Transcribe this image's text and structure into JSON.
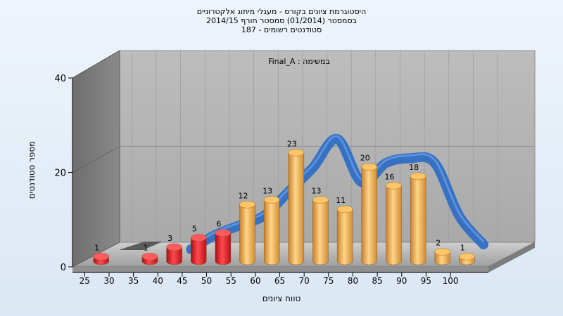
{
  "chart_data": {
    "type": "bar",
    "title_lines": [
      "היסטוגרמת ציונים בקורס - מעגלי מיתוג אלקטרוניים",
      "בסמסטר  (01/2014)  סמסטר חורף 2014/15",
      "סטודנטים רשומים - 187"
    ],
    "annotation": "במשימה : Final_A",
    "xlabel": "טווח ציונים",
    "ylabel": "מספר סטודנטים",
    "x_ticks": [
      "25",
      "30",
      "35",
      "40",
      "45",
      "50",
      "55",
      "60",
      "65",
      "70",
      "75",
      "80",
      "85",
      "90",
      "95",
      "100"
    ],
    "y_ticks": [
      "0",
      "20",
      "40"
    ],
    "ylim": [
      0,
      40
    ],
    "grid": true,
    "bar_positions": [
      27.5,
      37.5,
      42.5,
      47.5,
      52.5,
      57.5,
      62.5,
      67.5,
      72.5,
      77.5,
      82.5,
      87.5,
      92.5,
      97.5,
      102.5
    ],
    "values": [
      1,
      1,
      3,
      5,
      6,
      12,
      13,
      23,
      13,
      11,
      20,
      16,
      18,
      2,
      1
    ],
    "bar_colors": [
      "#e8242a",
      "#e8242a",
      "#e8242a",
      "#e8242a",
      "#e8242a",
      "#f0a640",
      "#f0a640",
      "#f0a640",
      "#f0a640",
      "#f0a640",
      "#f0a640",
      "#f0a640",
      "#f0a640",
      "#f0a640",
      "#f0a640"
    ],
    "distribution_curve": {
      "color": "#2f6ec4",
      "x": [
        40,
        45,
        50,
        55,
        60,
        65,
        70,
        75,
        80,
        85,
        90,
        95,
        100
      ],
      "y": [
        0,
        3,
        5,
        7,
        12,
        17,
        23,
        14,
        18,
        19,
        18,
        7,
        1
      ]
    }
  }
}
